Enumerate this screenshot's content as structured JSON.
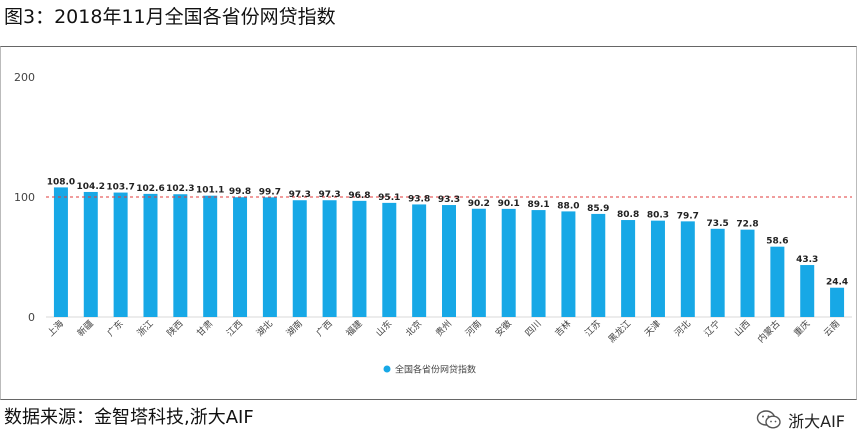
{
  "figure": {
    "title": "图3：2018年11月全国各省份网贷指数",
    "source": "数据来源：金智塔科技,浙大AIF",
    "watermark": "浙大AIF"
  },
  "colors": {
    "bar": "#17a8e6",
    "reference_line": "#e23b3b",
    "grid": "#d9d9d9",
    "axis_text": "#444444"
  },
  "chart_data": {
    "type": "bar",
    "title": "",
    "xlabel": "",
    "ylabel": "",
    "ylim": [
      0,
      200
    ],
    "yticks": [
      0,
      100,
      200
    ],
    "reference_line": 100,
    "legend_position": "bottom-center",
    "categories": [
      "上海",
      "新疆",
      "广东",
      "浙江",
      "陕西",
      "甘肃",
      "江西",
      "湖北",
      "湖南",
      "广西",
      "福建",
      "山东",
      "北京",
      "贵州",
      "河南",
      "安徽",
      "四川",
      "吉林",
      "江苏",
      "黑龙江",
      "天津",
      "河北",
      "辽宁",
      "山西",
      "内蒙古",
      "重庆",
      "云南"
    ],
    "series": [
      {
        "name": "全国各省份网贷指数",
        "values": [
          108.0,
          104.2,
          103.7,
          102.6,
          102.3,
          101.1,
          99.8,
          99.7,
          97.3,
          97.3,
          96.8,
          95.1,
          93.8,
          93.3,
          90.2,
          90.1,
          89.1,
          88.0,
          85.9,
          80.8,
          80.3,
          79.7,
          73.5,
          72.8,
          58.6,
          43.3,
          24.4
        ],
        "labels": [
          "108.0",
          "104.2",
          "103.7",
          "102.6",
          "102.3",
          "101.1",
          "99.8",
          "99.7",
          "97.3",
          "97.3",
          "96.8",
          "95.1",
          "93.8",
          "93.3",
          "90.2",
          "90.1",
          "89.1",
          "88.0",
          "85.9",
          "80.8",
          "80.3",
          "79.7",
          "73.5",
          "72.8",
          "58.6",
          "43.3",
          "24.4"
        ]
      }
    ]
  }
}
